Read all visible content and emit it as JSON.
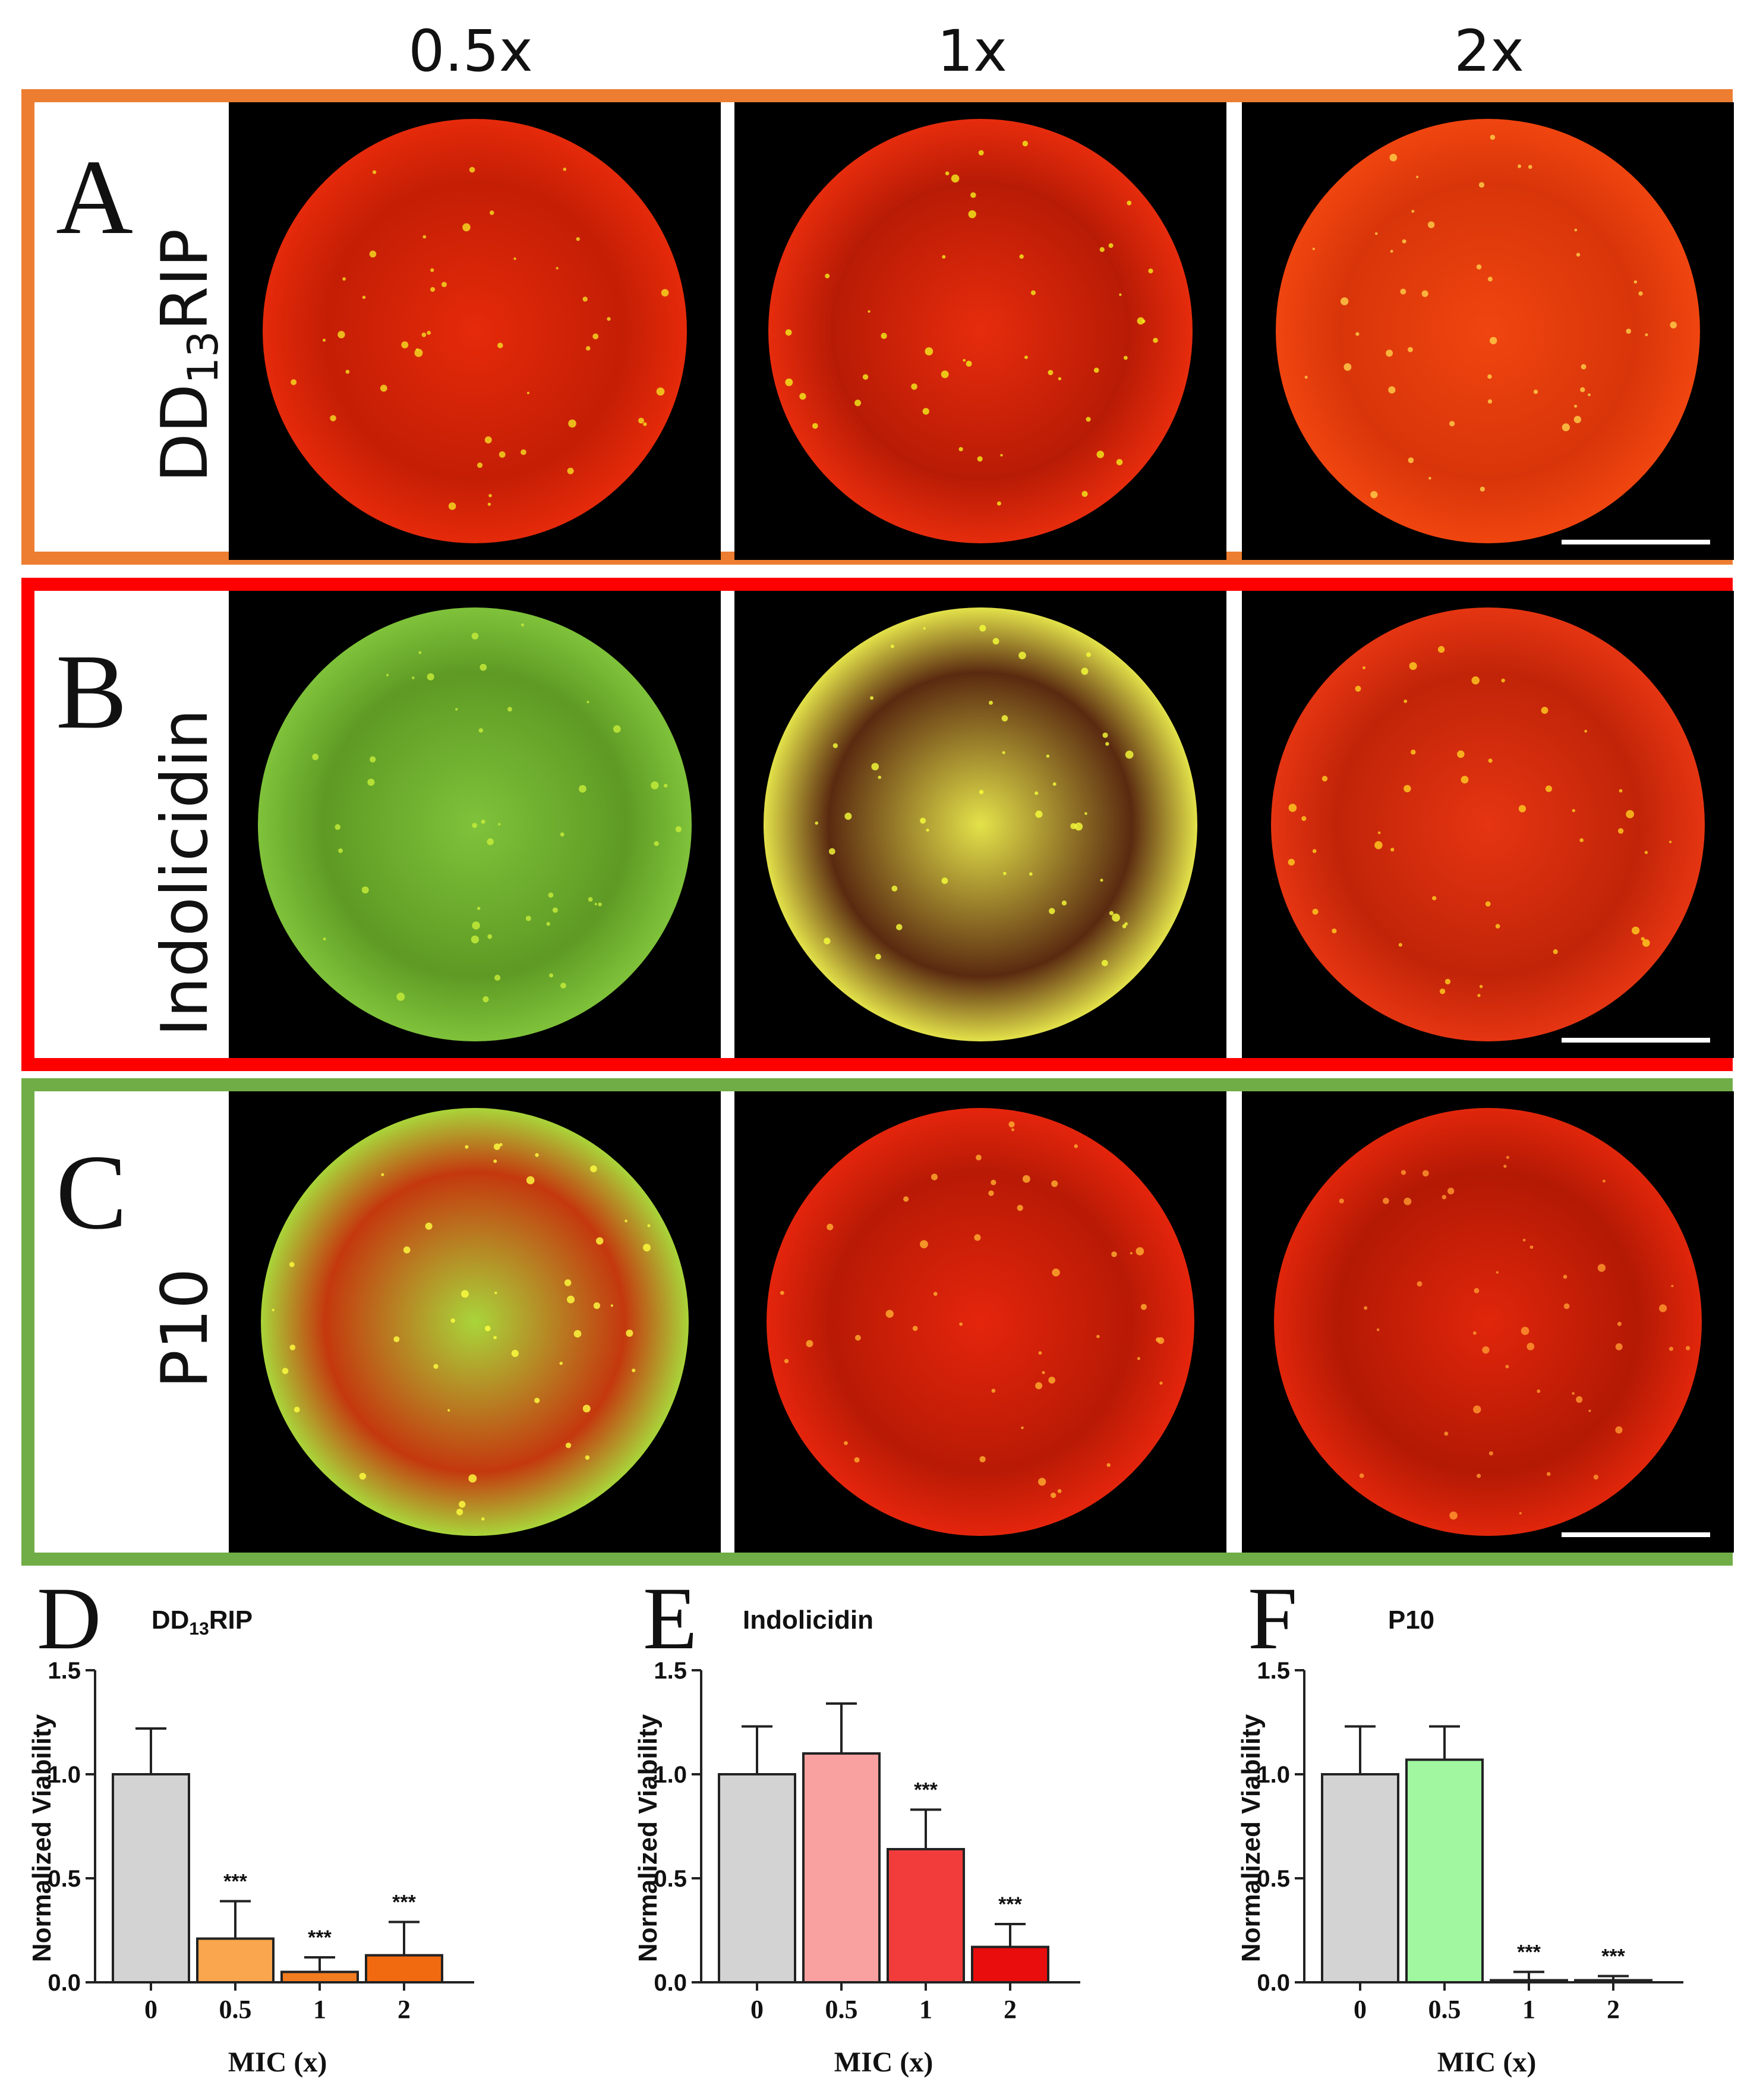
{
  "column_headers": [
    "0.5x",
    "1x",
    "2x"
  ],
  "rows": [
    {
      "letter": "A",
      "name_main": "DD",
      "name_sub": "13",
      "name_tail": "RIP",
      "border_color": "#ed7d31"
    },
    {
      "letter": "B",
      "name_main": "Indolicidin",
      "name_sub": "",
      "name_tail": "",
      "border_color": "#ff0000"
    },
    {
      "letter": "C",
      "name_main": "P10",
      "name_sub": "",
      "name_tail": "",
      "border_color": "#70ad47"
    }
  ],
  "micrograph_tiles": [
    [
      "red biofilm with yellow streaks",
      "red biofilm, yellow rim",
      "uniform red biofilm"
    ],
    [
      "green biofilm",
      "yellow biofilm with dark centre",
      "red biofilm, yellow edges"
    ],
    [
      "green-yellow biofilm with red arc",
      "red biofilm",
      "red biofilm"
    ]
  ],
  "chart_data": [
    {
      "type": "bar",
      "letter": "D",
      "title_main": "DD",
      "title_sub": "13",
      "title_tail": "RIP",
      "xlabel": "MIC (x)",
      "ylabel": "Normalized Viability",
      "categories": [
        "0",
        "0.5",
        "1",
        "2"
      ],
      "values": [
        1.0,
        0.21,
        0.05,
        0.13
      ],
      "errors": [
        0.22,
        0.18,
        0.07,
        0.16
      ],
      "significance": [
        "",
        "***",
        "***",
        "***"
      ],
      "colors": [
        "#d3d3d3",
        "#f9a64e",
        "#f47c20",
        "#f26a0f"
      ],
      "ylim": [
        0,
        1.5
      ],
      "yticks": [
        "0.0",
        "0.5",
        "1.0",
        "1.5"
      ]
    },
    {
      "type": "bar",
      "letter": "E",
      "title_main": "Indolicidin",
      "title_sub": "",
      "title_tail": "",
      "xlabel": "MIC (x)",
      "ylabel": "Normalized Viability",
      "categories": [
        "0",
        "0.5",
        "1",
        "2"
      ],
      "values": [
        1.0,
        1.1,
        0.64,
        0.17
      ],
      "errors": [
        0.23,
        0.24,
        0.19,
        0.11
      ],
      "significance": [
        "",
        "",
        "***",
        "***"
      ],
      "colors": [
        "#d3d3d3",
        "#f9a0a0",
        "#f23c3c",
        "#ea0d0d"
      ],
      "ylim": [
        0,
        1.5
      ],
      "yticks": [
        "0.0",
        "0.5",
        "1.0",
        "1.5"
      ]
    },
    {
      "type": "bar",
      "letter": "F",
      "title_main": "P10",
      "title_sub": "",
      "title_tail": "",
      "xlabel": "MIC (x)",
      "ylabel": "Normalized Viability",
      "categories": [
        "0",
        "0.5",
        "1",
        "2"
      ],
      "values": [
        1.0,
        1.07,
        0.01,
        0.01
      ],
      "errors": [
        0.23,
        0.16,
        0.04,
        0.02
      ],
      "significance": [
        "",
        "",
        "***",
        "***"
      ],
      "colors": [
        "#d3d3d3",
        "#a0f7a0",
        "#35cf35",
        "#2fbf2f"
      ],
      "ylim": [
        0,
        1.5
      ],
      "yticks": [
        "0.0",
        "0.5",
        "1.0",
        "1.5"
      ]
    }
  ]
}
